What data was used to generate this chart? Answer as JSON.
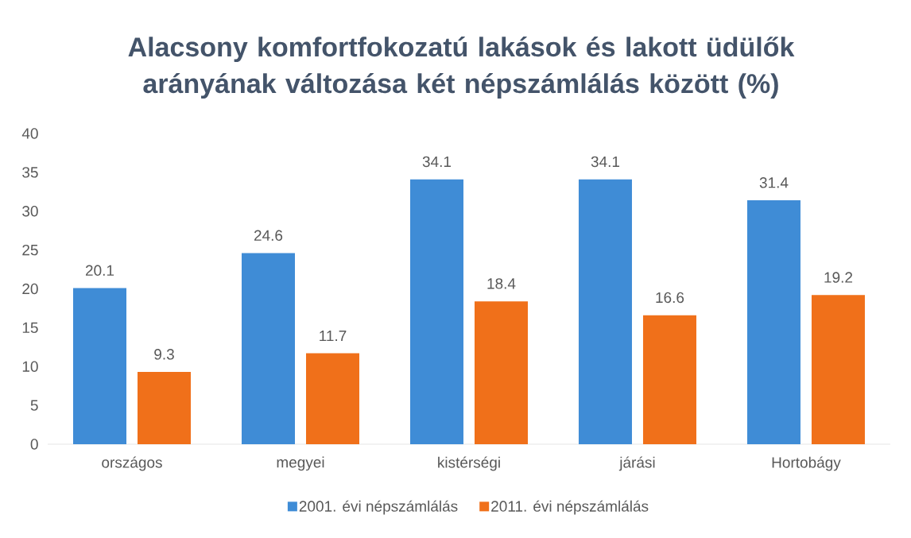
{
  "chart_data": {
    "type": "bar",
    "title": "Alacsony komfortfokozatú lakások és lakott üdülők arányának változása két népszámlálás között (%)",
    "categories": [
      "országos",
      "megyei",
      "kistérségi",
      "járási",
      "Hortobágy"
    ],
    "series": [
      {
        "name": "2001. évi népszámlálás",
        "color": "#3f8cd6",
        "values": [
          20.1,
          24.6,
          34.1,
          34.1,
          31.4
        ]
      },
      {
        "name": "2011. évi népszámlálás",
        "color": "#f0701a",
        "values": [
          9.3,
          11.7,
          18.4,
          16.6,
          19.2
        ]
      }
    ],
    "ylim": [
      0,
      40
    ],
    "yticks": [
      0,
      5,
      10,
      15,
      20,
      25,
      30,
      35,
      40
    ],
    "data_labels": true,
    "grid": false,
    "legend": "bottom"
  }
}
